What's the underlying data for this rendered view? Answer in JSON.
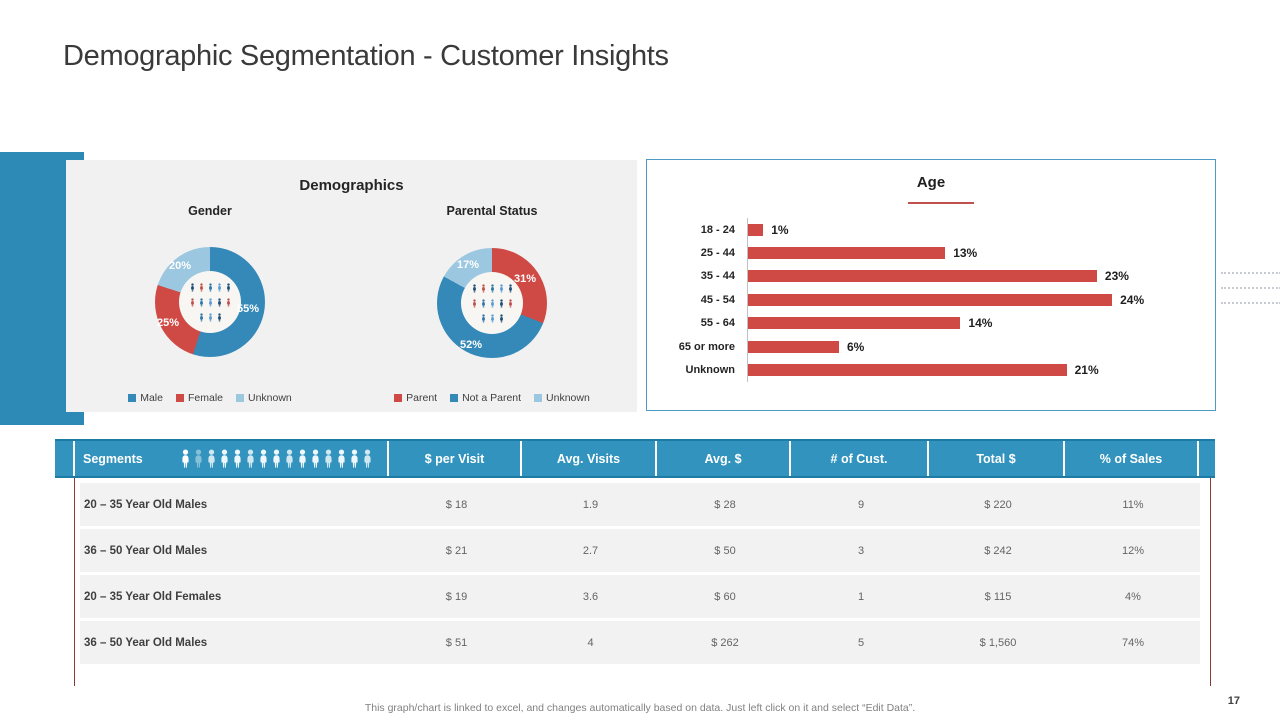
{
  "page": {
    "title": "Demographic Segmentation - Customer Insights"
  },
  "demographics_panel": {
    "title": "Demographics",
    "gender_title": "Gender",
    "parental_title": "Parental Status"
  },
  "age_panel": {
    "title": "Age"
  },
  "chart_data": [
    {
      "type": "pie",
      "subtype": "donut",
      "title": "Gender",
      "labels": [
        "Male",
        "Female",
        "Unknown"
      ],
      "values": [
        55,
        25,
        20
      ],
      "value_labels": [
        "55%",
        "25%",
        "20%"
      ],
      "colors": [
        "#3489b8",
        "#d04a45",
        "#9cc7e0"
      ],
      "legend_position": "bottom"
    },
    {
      "type": "pie",
      "subtype": "donut",
      "title": "Parental Status",
      "labels": [
        "Parent",
        "Not a Parent",
        "Unknown"
      ],
      "values": [
        31,
        52,
        17
      ],
      "value_labels": [
        "31%",
        "52%",
        "17%"
      ],
      "colors": [
        "#d04a45",
        "#3489b8",
        "#9cc7e0"
      ],
      "legend_position": "bottom"
    },
    {
      "type": "bar",
      "orientation": "horizontal",
      "title": "Age",
      "categories": [
        "18 - 24",
        "25 - 44",
        "35 - 44",
        "45 - 54",
        "55 - 64",
        "65 or more",
        "Unknown"
      ],
      "values": [
        1,
        13,
        23,
        24,
        14,
        6,
        21
      ],
      "value_labels": [
        "1%",
        "13%",
        "23%",
        "24%",
        "14%",
        "6%",
        "21%"
      ],
      "bar_color": "#d04a45",
      "xlim": [
        0,
        25
      ],
      "grid": false,
      "legend_position": "none"
    }
  ],
  "table": {
    "headers": [
      "Segments",
      "$ per Visit",
      "Avg. Visits",
      "Avg. $",
      "# of Cust.",
      "Total $",
      "% of Sales"
    ],
    "people_icons_count": 15,
    "rows": [
      [
        "20 – 35 Year Old Males",
        "$ 18",
        "1.9",
        "$ 28",
        "9",
        "$ 220",
        "11%"
      ],
      [
        "36 – 50 Year Old Males",
        "$ 21",
        "2.7",
        "$ 50",
        "3",
        "$ 242",
        "12%"
      ],
      [
        "20 – 35 Year Old Females",
        "$ 19",
        "3.6",
        "$ 60",
        "1",
        "$ 115",
        "4%"
      ],
      [
        "36 – 50 Year Old Males",
        "$ 51",
        "4",
        "$ 262",
        "5",
        "$ 1,560",
        "74%"
      ]
    ]
  },
  "footer": {
    "note": "This graph/chart is linked to excel, and changes automatically  based on data. Just left click on it and select “Edit Data”.",
    "page_number": "17"
  },
  "colors": {
    "accent_blue": "#2d8ab6",
    "header_blue": "#3193be",
    "bar_red": "#d04a45",
    "slice_blue": "#3489b8",
    "slice_light_blue": "#9cc7e0",
    "panel_gray": "#f1f1f1",
    "maroon_line": "#8a3c34"
  }
}
